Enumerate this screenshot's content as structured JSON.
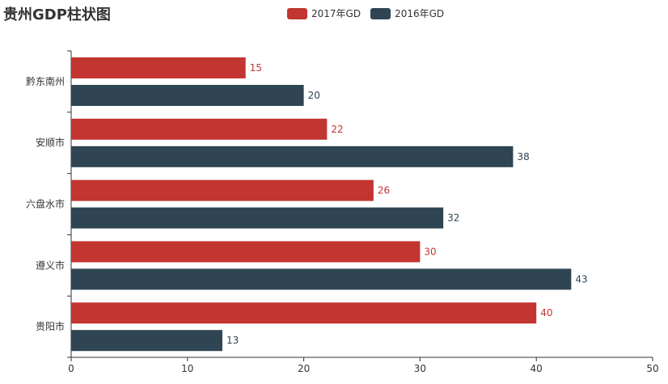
{
  "chart_data": {
    "type": "bar",
    "orientation": "horizontal",
    "title": "贵州GDP柱状图",
    "categories": [
      "贵阳市",
      "遵义市",
      "六盘水市",
      "安顺市",
      "黔东南州"
    ],
    "series": [
      {
        "name": "2017年GD",
        "color": "#c23531",
        "values": [
          40,
          30,
          26,
          22,
          15
        ]
      },
      {
        "name": "2016年GD",
        "color": "#2f4554",
        "values": [
          13,
          43,
          32,
          38,
          20
        ]
      }
    ],
    "xlim": [
      0,
      50
    ],
    "xticks": [
      0,
      10,
      20,
      30,
      40,
      50
    ],
    "legend_position": "top-center",
    "grid": false,
    "data_labels": true
  }
}
